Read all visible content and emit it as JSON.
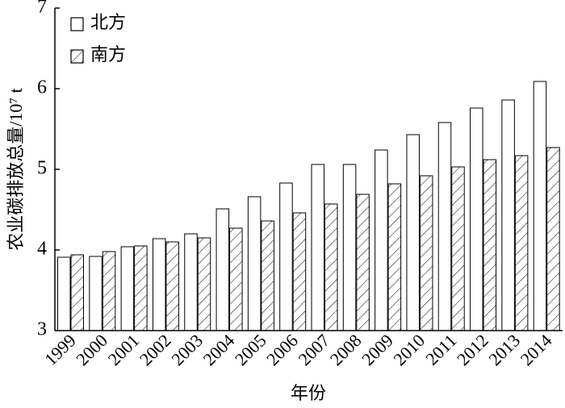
{
  "chart_data": {
    "type": "bar",
    "ylabel": "农业碳排放总量/10⁷ t",
    "xlabel": "年份",
    "categories": [
      "1999",
      "2000",
      "2001",
      "2002",
      "2003",
      "2004",
      "2005",
      "2006",
      "2007",
      "2008",
      "2009",
      "2010",
      "2011",
      "2012",
      "2013",
      "2014"
    ],
    "series": [
      {
        "name": "北方",
        "color": "#ffffff",
        "hatch": false,
        "values": [
          3.91,
          3.92,
          4.04,
          4.14,
          4.2,
          4.51,
          4.66,
          4.83,
          5.06,
          5.06,
          5.24,
          5.43,
          5.58,
          5.76,
          5.86,
          6.09
        ]
      },
      {
        "name": "南方",
        "color": "#ffffff",
        "hatch": true,
        "values": [
          3.94,
          3.98,
          4.05,
          4.1,
          4.15,
          4.27,
          4.36,
          4.46,
          4.57,
          4.69,
          4.82,
          4.92,
          5.03,
          5.12,
          5.17,
          5.27
        ]
      }
    ],
    "ylim": [
      3,
      7
    ],
    "yticks": [
      3,
      4,
      5,
      6,
      7
    ],
    "grid": false,
    "legend": "upper left"
  }
}
